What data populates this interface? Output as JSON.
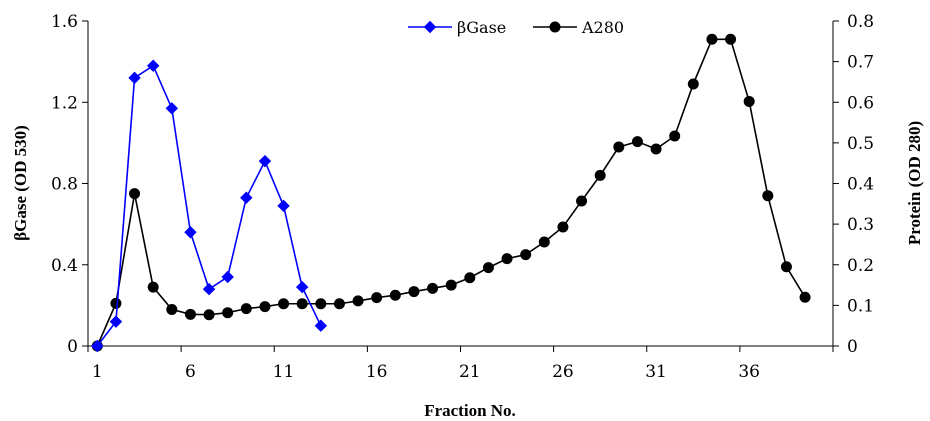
{
  "chart_data": {
    "type": "line",
    "title": "",
    "xlabel": "Fraction No.",
    "ylabel_left": "βGase (OD 530)",
    "ylabel_right": "Protein (OD 280)",
    "x_ticks": [
      "1",
      "6",
      "11",
      "16",
      "21",
      "26",
      "31",
      "36"
    ],
    "x_range": [
      1,
      40
    ],
    "y_left": {
      "range": [
        0,
        1.6
      ],
      "ticks": [
        "0",
        "0.4",
        "0.8",
        "1.2",
        "1.6"
      ]
    },
    "y_right": {
      "range": [
        0,
        0.8
      ],
      "ticks": [
        "0",
        "0.1",
        "0.2",
        "0.3",
        "0.4",
        "0.5",
        "0.6",
        "0.7",
        "0.8"
      ]
    },
    "grid": false,
    "legend_position": "top-center",
    "series": [
      {
        "name": "βGase",
        "axis": "left",
        "color": "#0000ff",
        "marker": "diamond",
        "x": [
          1,
          2,
          3,
          4,
          5,
          6,
          7,
          8,
          9,
          10,
          11,
          12,
          13
        ],
        "y": [
          0,
          0.12,
          1.32,
          1.38,
          1.17,
          0.56,
          0.28,
          0.34,
          0.73,
          0.91,
          0.69,
          0.29,
          0.1
        ]
      },
      {
        "name": "A280",
        "axis": "right",
        "color": "#000000",
        "marker": "circle",
        "x": [
          1,
          2,
          3,
          4,
          5,
          6,
          7,
          8,
          9,
          10,
          11,
          12,
          13,
          14,
          15,
          16,
          17,
          18,
          19,
          20,
          21,
          22,
          23,
          24,
          25,
          26,
          27,
          28,
          29,
          30,
          31,
          32,
          33,
          34,
          35,
          36,
          37,
          38,
          39
        ],
        "y": [
          0,
          0.105,
          0.375,
          0.145,
          0.09,
          0.078,
          0.077,
          0.082,
          0.092,
          0.097,
          0.104,
          0.104,
          0.104,
          0.104,
          0.111,
          0.119,
          0.125,
          0.134,
          0.142,
          0.15,
          0.168,
          0.193,
          0.215,
          0.225,
          0.256,
          0.293,
          0.357,
          0.42,
          0.49,
          0.503,
          0.485,
          0.517,
          0.645,
          0.755,
          0.755,
          0.602,
          0.37,
          0.195,
          0.12
        ]
      }
    ]
  }
}
